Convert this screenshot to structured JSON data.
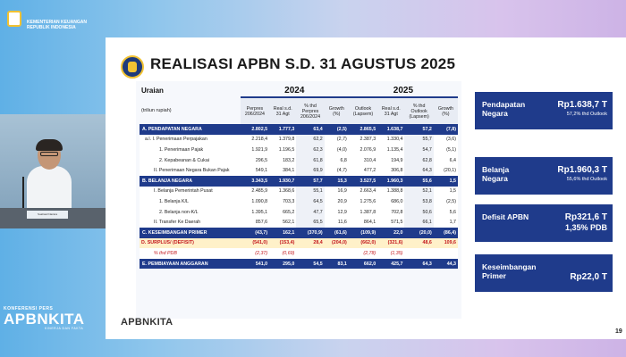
{
  "ministry": {
    "line1": "KEMENTERIAN KEUANGAN",
    "line2": "REPUBLIK INDONESIA"
  },
  "video": {
    "nameplate": "Suahasil Nazara"
  },
  "event_logo": {
    "small": "KONFERENSI PERS",
    "big": "APBNKITA",
    "tag": "KINERJA DAN FAKTA"
  },
  "slide": {
    "title": "REALISASI APBN S.D. 31 AGUSTUS 2025",
    "brand": "APBNKITA",
    "page": "19"
  },
  "table": {
    "uraian": "Uraian",
    "unit": "(triliun rupiah)",
    "year_2024": "2024",
    "year_2025": "2025",
    "cols_2024": [
      "Perpres 206/2024",
      "Real s.d. 31 Agt",
      "% thd Perpres 206/2024",
      "Growth (%)"
    ],
    "cols_2025": [
      "Outlook (Lapsem)",
      "Real s.d. 31 Agt",
      "% thd Outlook (Lapsem)",
      "Growth (%)"
    ],
    "rows": [
      {
        "type": "sec",
        "label": "A. PENDAPATAN NEGARA",
        "indent": 0,
        "v": [
          "2.802,5",
          "1.777,3",
          "63,4",
          "(2,5)",
          "2.865,5",
          "1.638,7",
          "57,2",
          "(7,8)"
        ]
      },
      {
        "type": "plain",
        "label": "a.l. I. Penerimaan Perpajakan",
        "indent": 1,
        "v": [
          "2.218,4",
          "1.379,8",
          "62,2",
          "(2,7)",
          "2.387,3",
          "1.330,4",
          "55,7",
          "(3,6)"
        ]
      },
      {
        "type": "plain",
        "label": "1. Penerimaan Pajak",
        "indent": 3,
        "v": [
          "1.921,9",
          "1.196,5",
          "62,3",
          "(4,0)",
          "2.076,9",
          "1.135,4",
          "54,7",
          "(5,1)"
        ]
      },
      {
        "type": "plain",
        "label": "2. Kepabeanan & Cukai",
        "indent": 3,
        "v": [
          "296,5",
          "183,2",
          "61,8",
          "6,8",
          "310,4",
          "194,9",
          "62,8",
          "6,4"
        ]
      },
      {
        "type": "plain",
        "label": "II. Penerimaan Negara Bukan Pajak",
        "indent": 2,
        "v": [
          "549,1",
          "384,1",
          "69,9",
          "(4,7)",
          "477,2",
          "306,8",
          "64,3",
          "(20,1)"
        ]
      },
      {
        "type": "sec",
        "label": "B. BELANJA NEGARA",
        "indent": 0,
        "v": [
          "3.343,5",
          "1.930,7",
          "57,7",
          "15,3",
          "3.527,5",
          "1.960,3",
          "55,6",
          "1,5"
        ]
      },
      {
        "type": "plain",
        "label": "I. Belanja Pemerintah Pusat",
        "indent": 2,
        "v": [
          "2.485,9",
          "1.368,6",
          "55,1",
          "16,9",
          "2.663,4",
          "1.388,8",
          "52,1",
          "1,5"
        ]
      },
      {
        "type": "plain",
        "label": "1. Belanja K/L",
        "indent": 3,
        "v": [
          "1.090,8",
          "703,3",
          "64,5",
          "20,9",
          "1.275,6",
          "686,0",
          "53,8",
          "(2,5)"
        ]
      },
      {
        "type": "plain",
        "label": "2. Belanja non-K/L",
        "indent": 3,
        "v": [
          "1.395,1",
          "665,2",
          "47,7",
          "12,9",
          "1.387,8",
          "702,8",
          "50,6",
          "5,6"
        ]
      },
      {
        "type": "plain",
        "label": "II. Transfer Ke Daerah",
        "indent": 2,
        "v": [
          "857,6",
          "562,1",
          "65,5",
          "11,6",
          "864,1",
          "571,5",
          "66,1",
          "1,7"
        ]
      },
      {
        "type": "sec",
        "label": "C. KESEIMBANGAN PRIMER",
        "indent": 0,
        "v": [
          "(43,7)",
          "162,1",
          "(370,9)",
          "(61,6)",
          "(109,9)",
          "22,0",
          "(20,0)",
          "(86,4)"
        ]
      },
      {
        "type": "surplus",
        "label": "D. SURPLUS/ (DEFISIT)",
        "indent": 0,
        "v": [
          "(541,0)",
          "(153,4)",
          "28,4",
          "(204,0)",
          "(662,0)",
          "(321,6)",
          "48,6",
          "109,6"
        ]
      },
      {
        "type": "pdb",
        "label": "% thd PDB",
        "indent": 2,
        "v": [
          "(2,37)",
          "(0,69)",
          "",
          "",
          "(2,78)",
          "(1,35)",
          "",
          ""
        ]
      },
      {
        "type": "sec",
        "label": "E. PEMBIAYAAN ANGGARAN",
        "indent": 0,
        "v": [
          "541,0",
          "295,0",
          "54,5",
          "83,1",
          "662,0",
          "425,7",
          "64,3",
          "44,3"
        ]
      }
    ]
  },
  "cards": [
    {
      "label": "Pendapatan Negara",
      "value": "Rp1.638,7 T",
      "sub": "57,2% thd Outlook"
    },
    {
      "label": "Belanja Negara",
      "value": "Rp1.960,3 T",
      "sub": "55,6% thd Outlook"
    },
    {
      "label": "Defisit APBN",
      "value": "Rp321,6 T",
      "sub": "1,35% PDB"
    },
    {
      "label": "Keseimbangan Primer",
      "value": "Rp22,0 T",
      "sub": ""
    }
  ]
}
